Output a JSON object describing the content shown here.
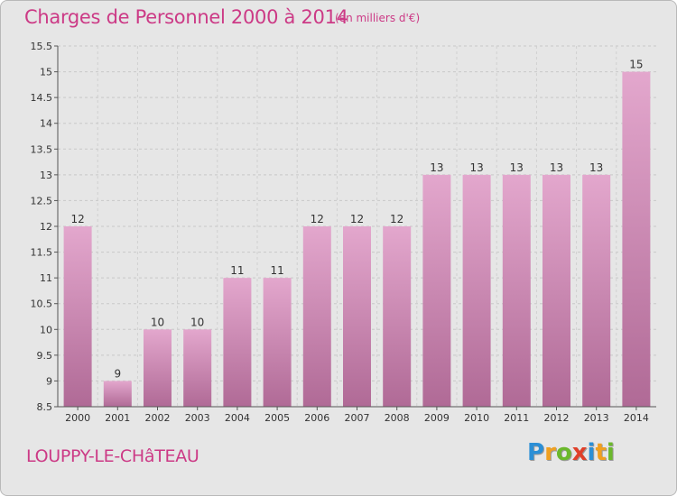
{
  "header": {
    "title": "Charges de Personnel 2000 à 2014",
    "subtitle": "(en milliers d'€)"
  },
  "footer": {
    "commune": "LOUPPY-LE-CHâTEAU",
    "logo": {
      "letters": [
        "P",
        "r",
        "o",
        "x",
        "i",
        "t",
        "i"
      ],
      "colors": [
        "#2b8fd6",
        "#f0a020",
        "#6bb82c",
        "#e0402a",
        "#2b8fd6",
        "#f0a020",
        "#6bb82c"
      ]
    }
  },
  "colors": {
    "bar_top": "#e3a7cd",
    "bar_bottom": "#b06a96",
    "text_accent": "#cc3a86"
  },
  "chart_data": {
    "type": "bar",
    "categories": [
      "2000",
      "2001",
      "2002",
      "2003",
      "2004",
      "2005",
      "2006",
      "2007",
      "2008",
      "2009",
      "2010",
      "2011",
      "2012",
      "2013",
      "2014"
    ],
    "values": [
      12,
      9,
      10,
      10,
      11,
      11,
      12,
      12,
      12,
      13,
      13,
      13,
      13,
      13,
      15
    ],
    "data_labels": [
      "12",
      "9",
      "10",
      "10",
      "11",
      "11",
      "12",
      "12",
      "12",
      "13",
      "13",
      "13",
      "13",
      "13",
      "15"
    ],
    "yticks": [
      8.5,
      9,
      9.5,
      10,
      10.5,
      11,
      11.5,
      12,
      12.5,
      13,
      13.5,
      14,
      14.5,
      15,
      15.5
    ],
    "ytick_labels": [
      "8.5",
      "9",
      "9.5",
      "10",
      "10.5",
      "11",
      "11.5",
      "12",
      "12.5",
      "13",
      "13.5",
      "14",
      "14.5",
      "15",
      "15.5"
    ],
    "ylim": [
      8.5,
      15.5
    ],
    "grid": true
  }
}
